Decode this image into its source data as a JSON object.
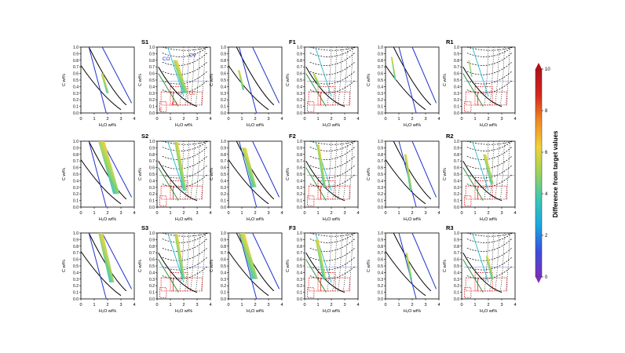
{
  "figure": {
    "colorbar": {
      "label": "Difference from target values",
      "ticks": [
        0,
        2,
        4,
        6,
        8,
        10
      ],
      "range": [
        0,
        10
      ],
      "colors": [
        "#7b2fbf",
        "#3a4fe0",
        "#1aa8e0",
        "#3cc7b5",
        "#9ad45a",
        "#f2d23a",
        "#f08a24",
        "#d8261c",
        "#b0101a"
      ]
    },
    "row_labels": [
      [
        "S1",
        "F1",
        "R1"
      ],
      [
        "S2",
        "F2",
        "R2"
      ],
      [
        "S3",
        "F3",
        "R3"
      ]
    ],
    "axis_labels": {
      "x": "H₂O wt%",
      "y": "C wt%"
    },
    "x_ticks": [
      "0",
      "1",
      "2",
      "3",
      "4"
    ],
    "y_ticks": [
      "0.0",
      "0.1",
      "0.2",
      "0.3",
      "0.4",
      "0.5",
      "0.6",
      "0.7",
      "0.8",
      "0.9",
      "1.0"
    ],
    "region_labels": [
      "CO",
      "CV",
      "CI",
      "E",
      "LC"
    ]
  },
  "chart_data": [
    {
      "type": "area",
      "panel": "S1-left",
      "xlim": [
        0,
        4
      ],
      "ylim": [
        0,
        1
      ],
      "region": {
        "x": [
          1.5,
          2.1
        ],
        "y": [
          0.3,
          0.6
        ]
      },
      "color_range": [
        4,
        10
      ]
    },
    {
      "type": "line",
      "panel": "S1-right",
      "xlim": [
        0,
        4
      ],
      "ylim": [
        0,
        1
      ],
      "grid": false,
      "colored_region": {
        "x": [
          1.2,
          2.3
        ],
        "y": [
          0.3,
          0.8
        ]
      }
    },
    {
      "type": "area",
      "panel": "F1-left",
      "xlim": [
        0,
        4
      ],
      "ylim": [
        0,
        1
      ],
      "region": {
        "x": [
          0.7,
          1.2
        ],
        "y": [
          0.35,
          0.65
        ]
      },
      "color_range": [
        5,
        10
      ]
    },
    {
      "type": "line",
      "panel": "F1-right",
      "xlim": [
        0,
        4
      ],
      "ylim": [
        0,
        1
      ],
      "colored_region": {
        "x": [
          0.6,
          1.2
        ],
        "y": [
          0.4,
          0.6
        ]
      }
    },
    {
      "type": "area",
      "panel": "R1-left",
      "xlim": [
        0,
        4
      ],
      "ylim": [
        0,
        1
      ],
      "region": {
        "x": [
          0.4,
          0.8
        ],
        "y": [
          0.5,
          0.85
        ]
      },
      "color_range": [
        3,
        7
      ]
    },
    {
      "type": "line",
      "panel": "R1-right",
      "xlim": [
        0,
        4
      ],
      "ylim": [
        0,
        1
      ],
      "colored_region": {
        "x": [
          0.5,
          0.8
        ],
        "y": [
          0.55,
          0.8
        ]
      }
    },
    {
      "type": "area",
      "panel": "S2-left",
      "xlim": [
        0,
        4
      ],
      "ylim": [
        0,
        1
      ],
      "region": {
        "x": [
          1.3,
          2.9
        ],
        "y": [
          0.2,
          1.0
        ]
      },
      "color_range": [
        3,
        10
      ]
    },
    {
      "type": "line",
      "panel": "S2-right",
      "xlim": [
        0,
        4
      ],
      "ylim": [
        0,
        1
      ],
      "colored_region": {
        "x": [
          1.3,
          2.2
        ],
        "y": [
          0.25,
          1.0
        ]
      }
    },
    {
      "type": "area",
      "panel": "F2-left",
      "xlim": [
        0,
        4
      ],
      "ylim": [
        0,
        1
      ],
      "region": {
        "x": [
          1.0,
          2.1
        ],
        "y": [
          0.3,
          0.9
        ]
      },
      "color_range": [
        3,
        10
      ]
    },
    {
      "type": "line",
      "panel": "F2-right",
      "xlim": [
        0,
        4
      ],
      "ylim": [
        0,
        1
      ],
      "colored_region": {
        "x": [
          0.9,
          1.6
        ],
        "y": [
          0.3,
          0.95
        ]
      }
    },
    {
      "type": "area",
      "panel": "R2-left",
      "xlim": [
        0,
        4
      ],
      "ylim": [
        0,
        1
      ],
      "region": {
        "x": [
          1.4,
          2.0
        ],
        "y": [
          0.25,
          0.8
        ]
      },
      "color_range": [
        5,
        10
      ]
    },
    {
      "type": "line",
      "panel": "R2-right",
      "xlim": [
        0,
        4
      ],
      "ylim": [
        0,
        1
      ],
      "colored_region": {
        "x": [
          1.6,
          2.4
        ],
        "y": [
          0.35,
          0.8
        ]
      }
    },
    {
      "type": "area",
      "panel": "S3-left",
      "xlim": [
        0,
        4
      ],
      "ylim": [
        0,
        1
      ],
      "region": {
        "x": [
          1.3,
          2.5
        ],
        "y": [
          0.25,
          1.0
        ]
      },
      "color_range": [
        4,
        10
      ]
    },
    {
      "type": "line",
      "panel": "S3-right",
      "xlim": [
        0,
        4
      ],
      "ylim": [
        0,
        1
      ],
      "colored_region": {
        "x": [
          1.3,
          2.1
        ],
        "y": [
          0.3,
          1.0
        ]
      }
    },
    {
      "type": "area",
      "panel": "F3-left",
      "xlim": [
        0,
        4
      ],
      "ylim": [
        0,
        1
      ],
      "region": {
        "x": [
          0.8,
          2.2
        ],
        "y": [
          0.3,
          1.0
        ]
      },
      "color_range": [
        3,
        10
      ]
    },
    {
      "type": "line",
      "panel": "F3-right",
      "xlim": [
        0,
        4
      ],
      "ylim": [
        0,
        1
      ],
      "colored_region": {
        "x": [
          0.8,
          1.6
        ],
        "y": [
          0.3,
          0.9
        ]
      }
    },
    {
      "type": "area",
      "panel": "R3-left",
      "xlim": [
        0,
        4
      ],
      "ylim": [
        0,
        1
      ],
      "region": {
        "x": [
          1.5,
          2.0
        ],
        "y": [
          0.3,
          0.7
        ]
      },
      "color_range": [
        6,
        10
      ]
    },
    {
      "type": "line",
      "panel": "R3-right",
      "xlim": [
        0,
        4
      ],
      "ylim": [
        0,
        1
      ],
      "colored_region": {
        "x": [
          1.8,
          2.4
        ],
        "y": [
          0.3,
          0.65
        ]
      }
    }
  ]
}
